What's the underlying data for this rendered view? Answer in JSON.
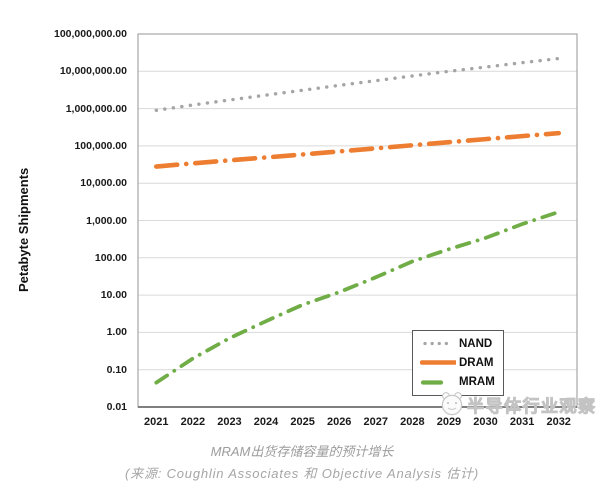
{
  "chart_data": {
    "type": "line",
    "title": "MRAM出货存储容量的预计增长",
    "xlabel": "",
    "ylabel": "Petabyte Shipments",
    "y_scale": "log",
    "y_range": [
      0.01,
      100000000
    ],
    "grid": true,
    "legend_position": "inside-bottom-right",
    "x_categories": [
      "2021",
      "2022",
      "2023",
      "2024",
      "2025",
      "2026",
      "2027",
      "2028",
      "2029",
      "2030",
      "2031",
      "2032"
    ],
    "y_ticks": [
      "100,000,000.00",
      "10,000,000.00",
      "1,000,000.00",
      "100,000.00",
      "10,000.00",
      "1,000.00",
      "100.00",
      "10.00",
      "1.00",
      "0.10",
      "0.01"
    ],
    "series": [
      {
        "name": "NAND",
        "color": "#a5a5a5",
        "style": "dotted",
        "values": [
          900000,
          1250000,
          1700000,
          2300000,
          3100000,
          4200000,
          5600000,
          7500000,
          10000000,
          13000000,
          17000000,
          22000000
        ]
      },
      {
        "name": "DRAM",
        "color": "#ed7d31",
        "style": "long-dash-dot",
        "values": [
          28000,
          34000,
          41000,
          49000,
          59000,
          71000,
          86000,
          104000,
          126000,
          152000,
          183000,
          220000
        ]
      },
      {
        "name": "MRAM",
        "color": "#70ad47",
        "style": "dash-dot",
        "values": [
          0.045,
          0.2,
          0.7,
          2,
          5.5,
          12,
          30,
          80,
          170,
          340,
          800,
          1700
        ]
      }
    ],
    "colors": {
      "gridline": "#d9d9d9",
      "plot_border": "#a6a6a6",
      "axis_line": "#7f7f7f"
    }
  },
  "captions": {
    "source": "(来源: Coughlin Associates 和 Objective Analysis 估计)"
  },
  "watermark": {
    "text": "半导体行业观察"
  }
}
